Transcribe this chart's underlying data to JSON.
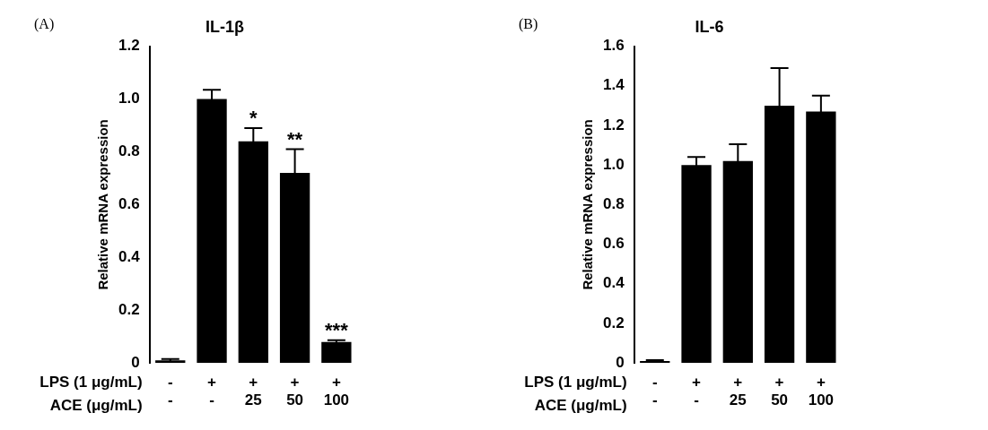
{
  "chart_data": [
    {
      "type": "bar",
      "title": "IL-1β",
      "ylabel": "Relative mRNA expression",
      "xlabel": "LPS (1 μg/mL)\nACE (μg/mL)",
      "annotations": [
        "(A)"
      ],
      "categories": [
        "-\n-",
        "+\n-",
        "+\n25",
        "+\n50",
        "+\n100"
      ],
      "values": [
        0.01,
        1.0,
        0.84,
        0.72,
        0.08
      ],
      "errors": [
        0.005,
        0.035,
        0.05,
        0.09,
        0.006
      ],
      "value_labels": [
        null,
        null,
        "*",
        "**",
        "***"
      ],
      "color": "#000000",
      "ylim": [
        0,
        1.2
      ],
      "yticks": [
        {
          "value": 0,
          "label": "0"
        },
        {
          "value": 0.2,
          "label": "0.2"
        },
        {
          "value": 0.4,
          "label": "0.4"
        },
        {
          "value": 0.6,
          "label": "0.6"
        },
        {
          "value": 0.8,
          "label": "0.8"
        },
        {
          "value": 1.0,
          "label": "1.0"
        },
        {
          "value": 1.2,
          "label": "1.2"
        }
      ],
      "grid": false,
      "legend": false
    },
    {
      "type": "bar",
      "title": "IL-6",
      "ylabel": "Relative mRNA expression",
      "xlabel": "LPS (1 μg/mL)\nACE (μg/mL)",
      "annotations": [
        "(B)"
      ],
      "categories": [
        "-\n-",
        "+\n-",
        "+\n25",
        "+\n50",
        "+\n100"
      ],
      "values": [
        0.01,
        1.0,
        1.02,
        1.3,
        1.27
      ],
      "errors": [
        0.005,
        0.04,
        0.085,
        0.19,
        0.08
      ],
      "color": "#000000",
      "ylim": [
        0,
        1.6
      ],
      "yticks": [
        {
          "value": 0,
          "label": "0"
        },
        {
          "value": 0.2,
          "label": "0.2"
        },
        {
          "value": 0.4,
          "label": "0.4"
        },
        {
          "value": 0.6,
          "label": "0.6"
        },
        {
          "value": 0.8,
          "label": "0.8"
        },
        {
          "value": 1.0,
          "label": "1.0"
        },
        {
          "value": 1.2,
          "label": "1.2"
        },
        {
          "value": 1.4,
          "label": "1.4"
        },
        {
          "value": 1.6,
          "label": "1.6"
        }
      ],
      "grid": false,
      "legend": false
    }
  ]
}
